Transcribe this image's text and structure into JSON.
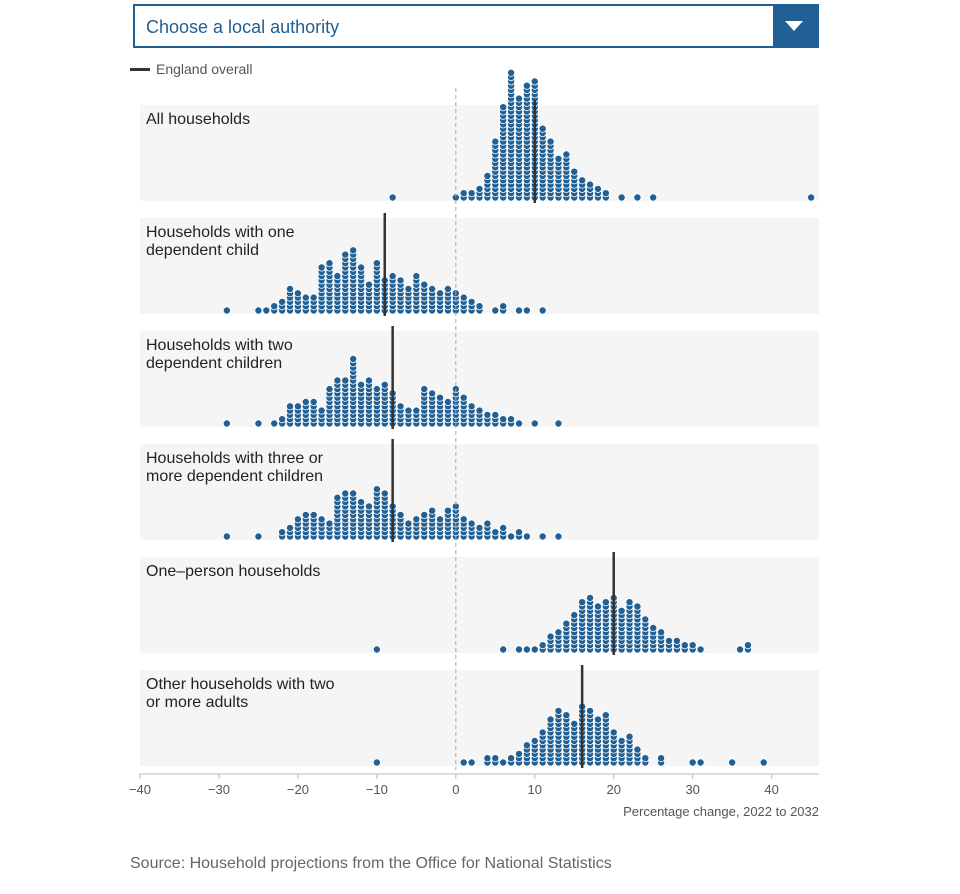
{
  "dropdown": {
    "label": "Choose a local authority",
    "icon": "chevron-down-icon"
  },
  "legend": {
    "label": "England overall",
    "color": "#333333"
  },
  "source": "Source: Household projections from the Office for National Statistics",
  "colors": {
    "dot_fill": "#206095",
    "dot_stroke": "#ffffff",
    "panel_bg": "#f5f5f5",
    "accent": "#206095"
  },
  "chart_data": {
    "type": "scatter",
    "subtype": "dot-histogram",
    "xlabel": "Percentage change, 2022 to 2032",
    "xlim": [
      -40,
      46
    ],
    "xticks": [
      -40,
      -30,
      -20,
      -10,
      0,
      10,
      20,
      30,
      40
    ],
    "xtick_labels": [
      "−40",
      "−30",
      "−20",
      "−10",
      "0",
      "10",
      "20",
      "30",
      "40"
    ],
    "reference_line_x": 0,
    "grid": false,
    "legend_position": "top-left",
    "bin_width": 1,
    "series": [
      {
        "name": "All households",
        "title_lines": [
          "All households"
        ],
        "england": 10,
        "bins": [
          [
            -8,
            1
          ],
          [
            0,
            1
          ],
          [
            1,
            2
          ],
          [
            2,
            2
          ],
          [
            3,
            3
          ],
          [
            4,
            6
          ],
          [
            5,
            14
          ],
          [
            6,
            22
          ],
          [
            7,
            30
          ],
          [
            8,
            24
          ],
          [
            9,
            27
          ],
          [
            10,
            28
          ],
          [
            11,
            17
          ],
          [
            12,
            14
          ],
          [
            13,
            10
          ],
          [
            14,
            11
          ],
          [
            15,
            7
          ],
          [
            16,
            5
          ],
          [
            17,
            4
          ],
          [
            18,
            3
          ],
          [
            19,
            2
          ],
          [
            21,
            1
          ],
          [
            23,
            1
          ],
          [
            25,
            1
          ],
          [
            45,
            1
          ]
        ]
      },
      {
        "name": "Households with one dependent child",
        "title_lines": [
          "Households with one",
          "dependent child"
        ],
        "england": -9,
        "bins": [
          [
            -29,
            1
          ],
          [
            -25,
            1
          ],
          [
            -24,
            1
          ],
          [
            -23,
            2
          ],
          [
            -22,
            3
          ],
          [
            -21,
            6
          ],
          [
            -20,
            5
          ],
          [
            -19,
            4
          ],
          [
            -18,
            4
          ],
          [
            -17,
            11
          ],
          [
            -16,
            12
          ],
          [
            -15,
            9
          ],
          [
            -14,
            14
          ],
          [
            -13,
            15
          ],
          [
            -12,
            11
          ],
          [
            -11,
            7
          ],
          [
            -10,
            12
          ],
          [
            -9,
            8
          ],
          [
            -8,
            9
          ],
          [
            -7,
            8
          ],
          [
            -6,
            6
          ],
          [
            -5,
            9
          ],
          [
            -4,
            7
          ],
          [
            -3,
            6
          ],
          [
            -2,
            5
          ],
          [
            -1,
            6
          ],
          [
            0,
            5
          ],
          [
            1,
            4
          ],
          [
            2,
            3
          ],
          [
            3,
            2
          ],
          [
            5,
            1
          ],
          [
            6,
            2
          ],
          [
            8,
            1
          ],
          [
            9,
            1
          ],
          [
            11,
            1
          ]
        ]
      },
      {
        "name": "Households with two dependent children",
        "title_lines": [
          "Households with two",
          "dependent children"
        ],
        "england": -8,
        "bins": [
          [
            -29,
            1
          ],
          [
            -25,
            1
          ],
          [
            -23,
            1
          ],
          [
            -22,
            2
          ],
          [
            -21,
            5
          ],
          [
            -20,
            5
          ],
          [
            -19,
            6
          ],
          [
            -18,
            6
          ],
          [
            -17,
            4
          ],
          [
            -16,
            9
          ],
          [
            -15,
            11
          ],
          [
            -14,
            11
          ],
          [
            -13,
            16
          ],
          [
            -12,
            10
          ],
          [
            -11,
            11
          ],
          [
            -10,
            9
          ],
          [
            -9,
            10
          ],
          [
            -8,
            8
          ],
          [
            -7,
            5
          ],
          [
            -6,
            4
          ],
          [
            -5,
            4
          ],
          [
            -4,
            9
          ],
          [
            -3,
            8
          ],
          [
            -2,
            7
          ],
          [
            -1,
            6
          ],
          [
            0,
            9
          ],
          [
            1,
            7
          ],
          [
            2,
            5
          ],
          [
            3,
            4
          ],
          [
            4,
            3
          ],
          [
            5,
            3
          ],
          [
            6,
            2
          ],
          [
            7,
            2
          ],
          [
            8,
            1
          ],
          [
            10,
            1
          ],
          [
            13,
            1
          ]
        ]
      },
      {
        "name": "Households with three or more dependent children",
        "title_lines": [
          "Households with three or",
          "more dependent children"
        ],
        "england": -8,
        "bins": [
          [
            -29,
            1
          ],
          [
            -25,
            1
          ],
          [
            -22,
            2
          ],
          [
            -21,
            3
          ],
          [
            -20,
            5
          ],
          [
            -19,
            6
          ],
          [
            -18,
            6
          ],
          [
            -17,
            5
          ],
          [
            -16,
            4
          ],
          [
            -15,
            10
          ],
          [
            -14,
            11
          ],
          [
            -13,
            11
          ],
          [
            -12,
            9
          ],
          [
            -11,
            8
          ],
          [
            -10,
            12
          ],
          [
            -9,
            11
          ],
          [
            -8,
            8
          ],
          [
            -7,
            6
          ],
          [
            -6,
            4
          ],
          [
            -5,
            5
          ],
          [
            -4,
            6
          ],
          [
            -3,
            7
          ],
          [
            -2,
            5
          ],
          [
            -1,
            7
          ],
          [
            0,
            8
          ],
          [
            1,
            5
          ],
          [
            2,
            4
          ],
          [
            3,
            3
          ],
          [
            4,
            4
          ],
          [
            5,
            2
          ],
          [
            6,
            3
          ],
          [
            7,
            1
          ],
          [
            8,
            2
          ],
          [
            9,
            1
          ],
          [
            11,
            1
          ],
          [
            13,
            1
          ]
        ]
      },
      {
        "name": "One-person households",
        "title_lines": [
          "One–person households"
        ],
        "england": 20,
        "bins": [
          [
            -10,
            1
          ],
          [
            6,
            1
          ],
          [
            8,
            1
          ],
          [
            9,
            1
          ],
          [
            10,
            1
          ],
          [
            11,
            2
          ],
          [
            12,
            4
          ],
          [
            13,
            5
          ],
          [
            14,
            7
          ],
          [
            15,
            9
          ],
          [
            16,
            12
          ],
          [
            17,
            13
          ],
          [
            18,
            11
          ],
          [
            19,
            12
          ],
          [
            20,
            13
          ],
          [
            21,
            10
          ],
          [
            22,
            12
          ],
          [
            23,
            11
          ],
          [
            24,
            8
          ],
          [
            25,
            6
          ],
          [
            26,
            5
          ],
          [
            27,
            3
          ],
          [
            28,
            3
          ],
          [
            29,
            2
          ],
          [
            30,
            2
          ],
          [
            31,
            1
          ],
          [
            36,
            1
          ],
          [
            37,
            2
          ]
        ]
      },
      {
        "name": "Other households with two or more adults",
        "title_lines": [
          "Other households with two",
          "or more adults"
        ],
        "england": 16,
        "bins": [
          [
            -10,
            1
          ],
          [
            1,
            1
          ],
          [
            2,
            1
          ],
          [
            4,
            2
          ],
          [
            5,
            2
          ],
          [
            6,
            1
          ],
          [
            7,
            2
          ],
          [
            8,
            3
          ],
          [
            9,
            5
          ],
          [
            10,
            6
          ],
          [
            11,
            8
          ],
          [
            12,
            11
          ],
          [
            13,
            13
          ],
          [
            14,
            12
          ],
          [
            15,
            10
          ],
          [
            16,
            14
          ],
          [
            17,
            13
          ],
          [
            18,
            11
          ],
          [
            19,
            12
          ],
          [
            20,
            8
          ],
          [
            21,
            6
          ],
          [
            22,
            7
          ],
          [
            23,
            4
          ],
          [
            24,
            2
          ],
          [
            26,
            2
          ],
          [
            30,
            1
          ],
          [
            31,
            1
          ],
          [
            35,
            1
          ],
          [
            39,
            1
          ]
        ]
      }
    ]
  }
}
